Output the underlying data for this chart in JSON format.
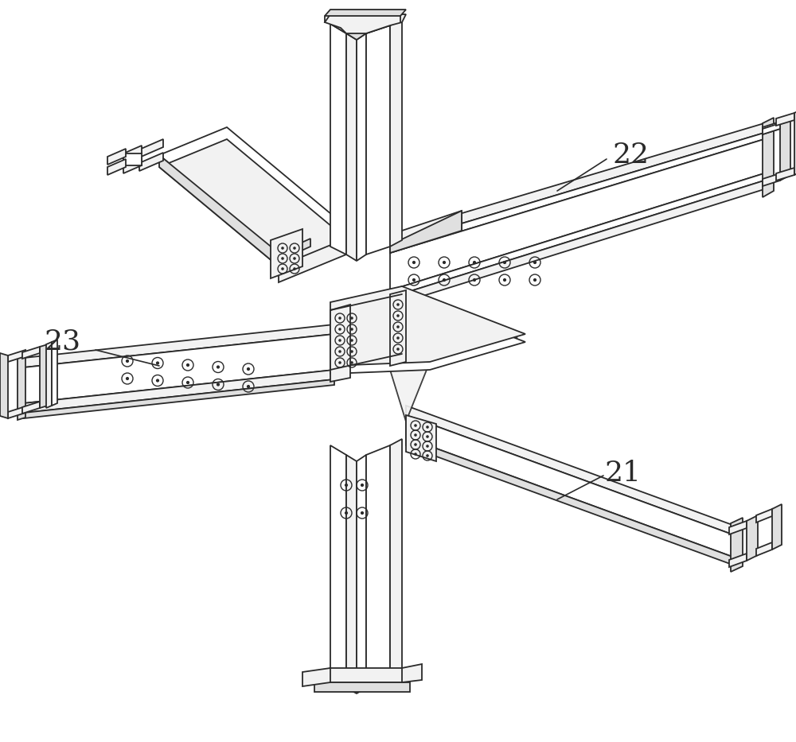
{
  "background_color": "#ffffff",
  "line_color": "#2a2a2a",
  "fill_white": "#ffffff",
  "fill_light": "#f2f2f2",
  "fill_mid": "#e0e0e0",
  "fill_dark": "#c8c8c8",
  "fill_darker": "#b0b0b0",
  "label_21": "21",
  "label_22": "22",
  "label_23": "23",
  "label_fontsize": 26,
  "figsize": [
    10.0,
    9.33
  ],
  "dpi": 100,
  "lw": 1.3,
  "bolt_lw": 1.0,
  "bolt_r": 0.008
}
